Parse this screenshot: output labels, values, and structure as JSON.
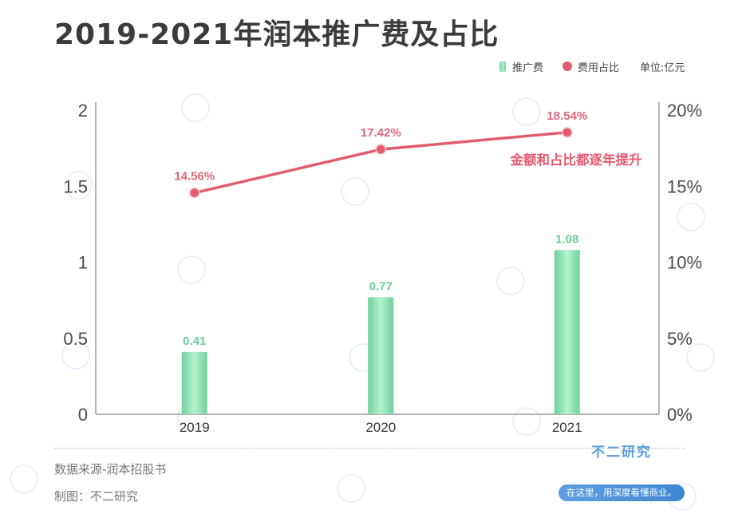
{
  "chart_data": {
    "type": "bar",
    "title": "2019-2021年润本推广费及占比",
    "categories": [
      "2019",
      "2020",
      "2021"
    ],
    "series": [
      {
        "name": "推广费",
        "type": "bar",
        "y_axis": "left",
        "values": [
          0.41,
          0.77,
          1.08
        ],
        "data_labels": [
          "0.41",
          "0.77",
          "1.08"
        ],
        "color": "#7fdcaa"
      },
      {
        "name": "费用占比",
        "type": "line",
        "y_axis": "right",
        "values": [
          14.56,
          17.42,
          18.54
        ],
        "data_labels": [
          "14.56%",
          "17.42%",
          "18.54%"
        ],
        "color": "#e45b6f"
      }
    ],
    "ylim": [
      0,
      2
    ],
    "y_ticks": [
      "0",
      "0.5",
      "1",
      "1.5",
      "2"
    ],
    "y2lim": [
      0,
      20
    ],
    "y2_ticks": [
      "0%",
      "5%",
      "10%",
      "15%",
      "20%"
    ],
    "unit": "单位:亿元",
    "annotations": [
      "金额和占比都逐年提升"
    ],
    "grid": false,
    "legend_position": "top-right"
  },
  "footer": {
    "source": "数据来源-润本招股书",
    "credit": "制图：不二研究"
  },
  "logo": {
    "name": "不二研究",
    "slogan": "在这里，用深度看懂商业。"
  }
}
